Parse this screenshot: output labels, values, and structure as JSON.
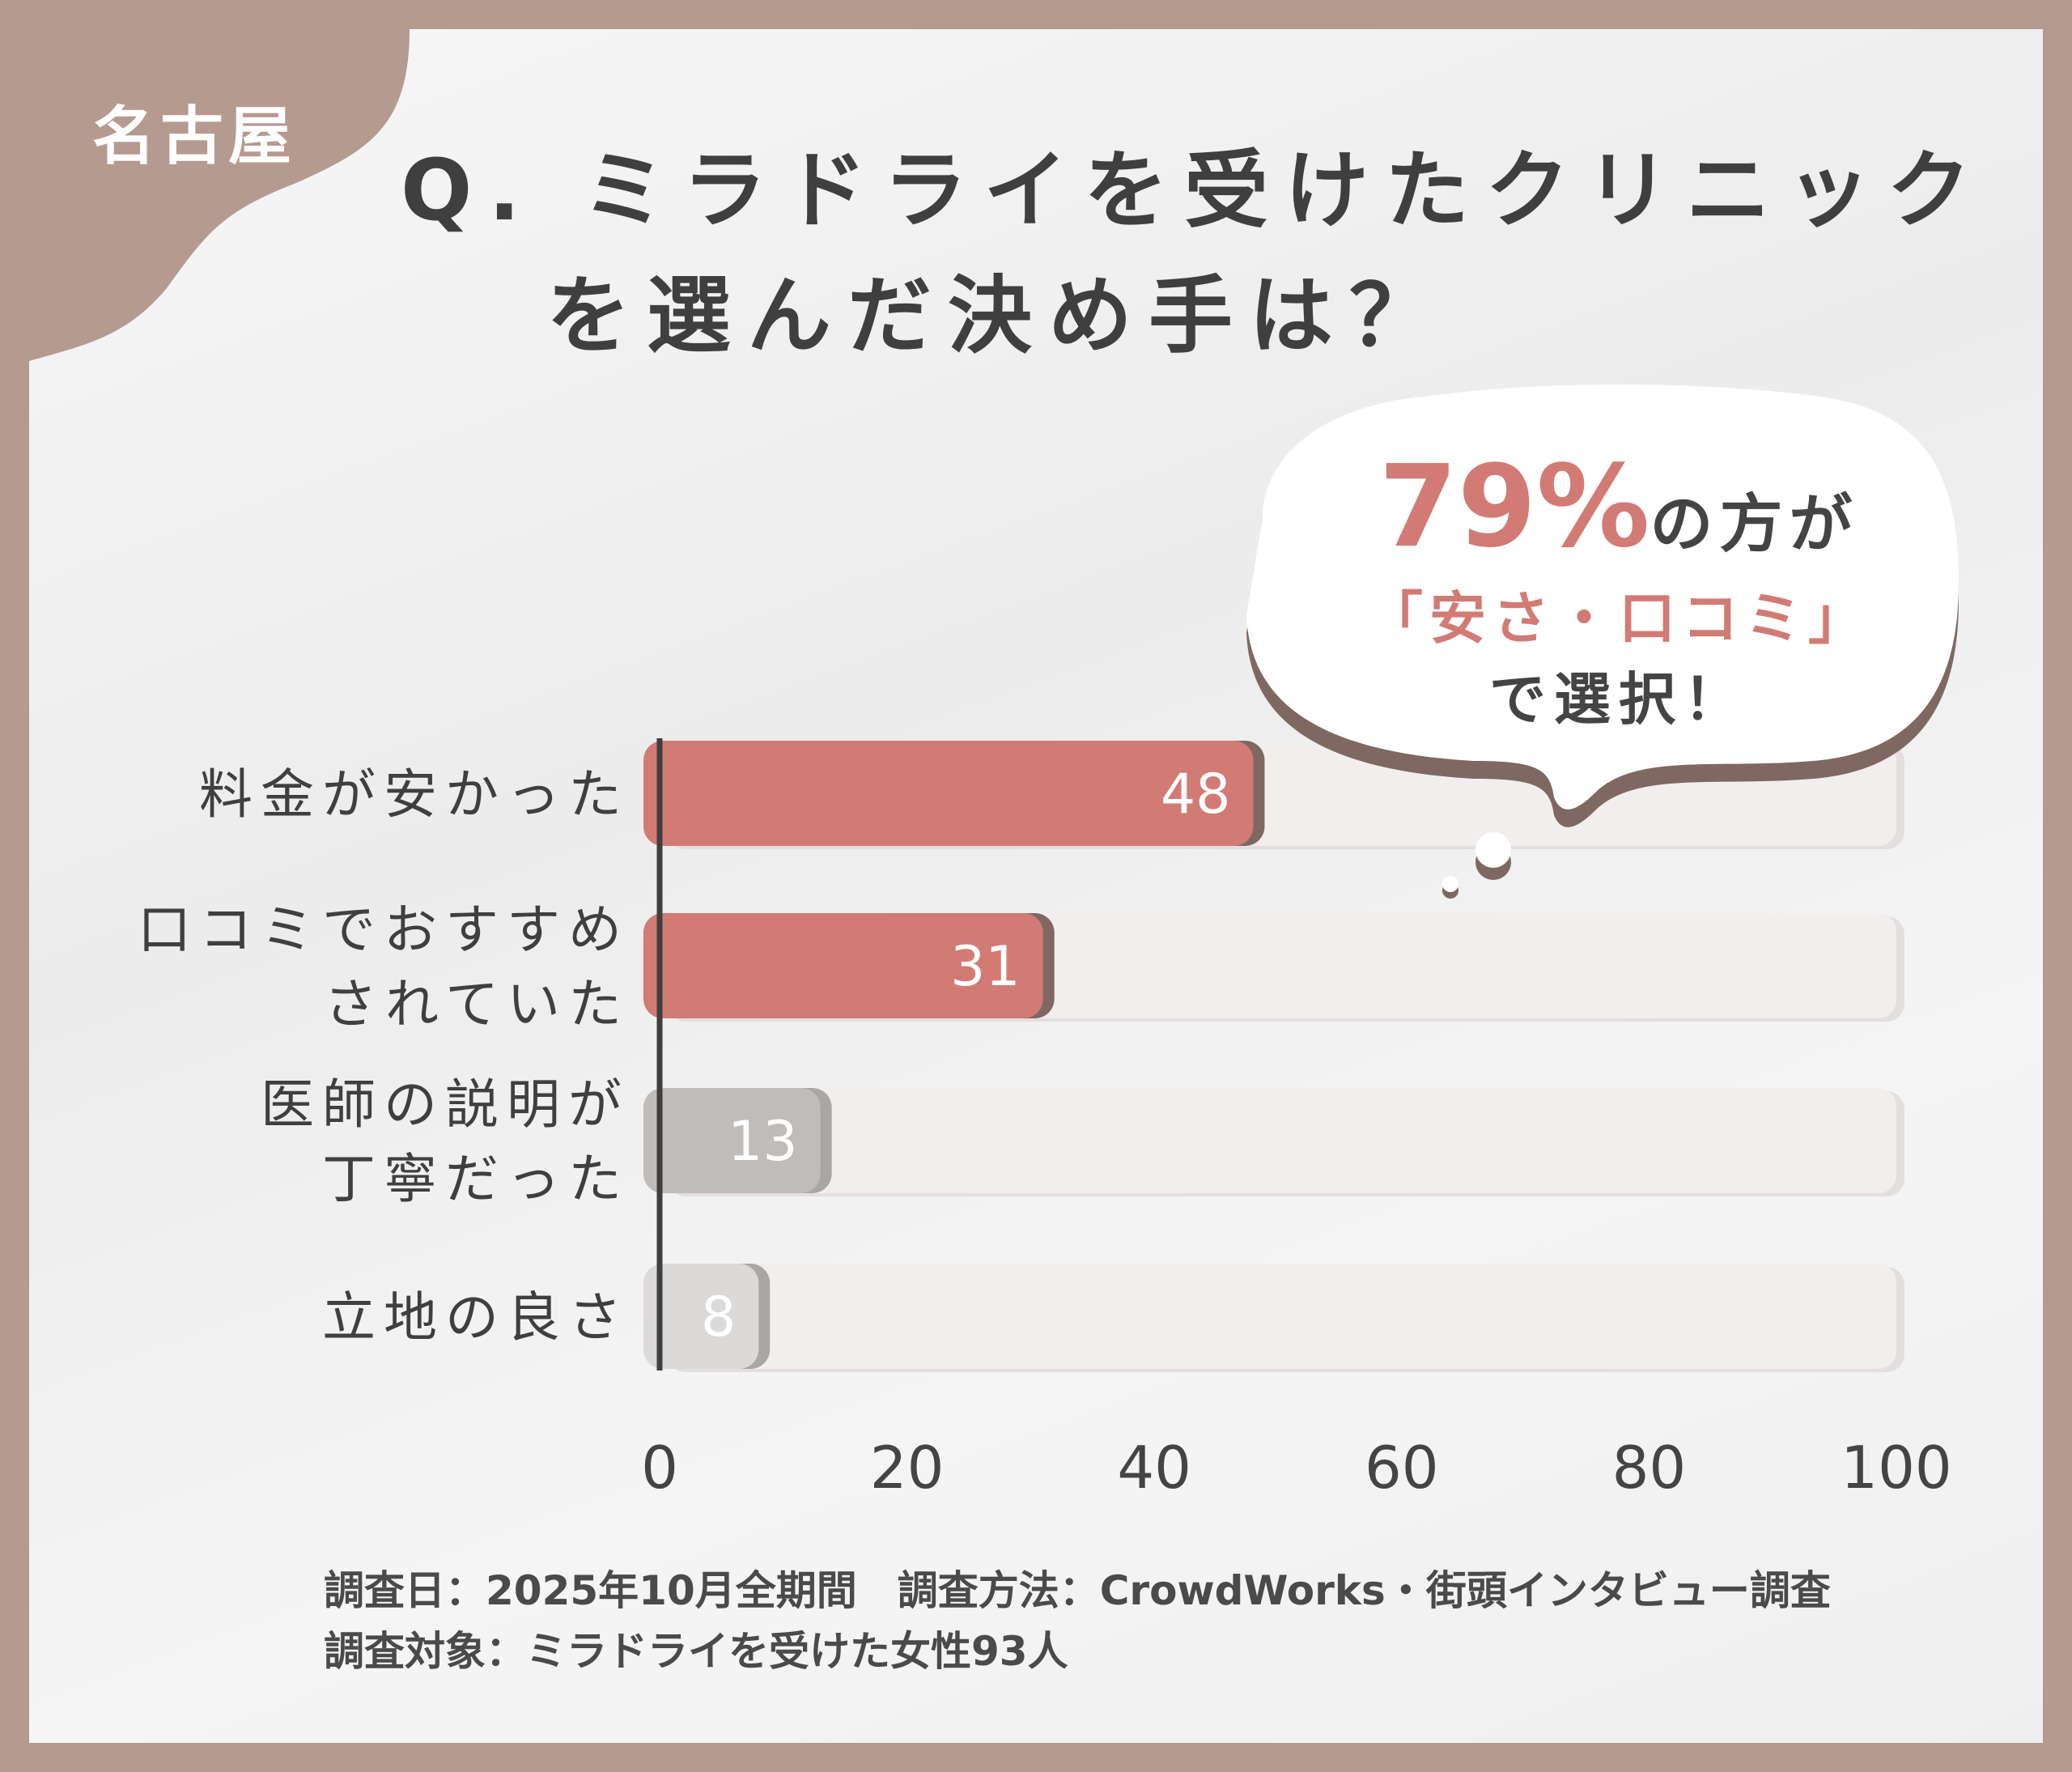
{
  "region_tag": "名古屋",
  "title": {
    "line1": "Q. ミラドライを受けたクリニック",
    "line2": "を選んだ決め手は？"
  },
  "callout": {
    "percent": "79%",
    "text1": "の方が",
    "text2": "「安さ・口コミ」",
    "text3": "で選択！"
  },
  "footer": {
    "line1": "調査日：2025年10月全期間　調査方法：CrowdWorks・街頭インタビュー調査",
    "line2": "調査対象：ミラドライを受けた女性93人"
  },
  "colors": {
    "frame": "#b59a90",
    "highlight": "#d27b75",
    "shadow": "#7f6862",
    "gray": "#bfbcba",
    "light_gray": "#dcdad8",
    "track": "#f1eeed"
  },
  "chart_data": {
    "type": "bar",
    "orientation": "horizontal",
    "categories": [
      [
        "料金が安かった"
      ],
      [
        "口コミでおすすめ",
        "されていた"
      ],
      [
        "医師の説明が",
        "丁寧だった"
      ],
      [
        "立地の良さ"
      ]
    ],
    "values": [
      48,
      31,
      13,
      8
    ],
    "bar_colors": [
      "#d27b75",
      "#d27b75",
      "#bfbcba",
      "#dcdad8"
    ],
    "xlim": [
      0,
      100
    ],
    "xticks": [
      "0",
      "20",
      "40",
      "60",
      "80",
      "100"
    ],
    "grid": false
  }
}
